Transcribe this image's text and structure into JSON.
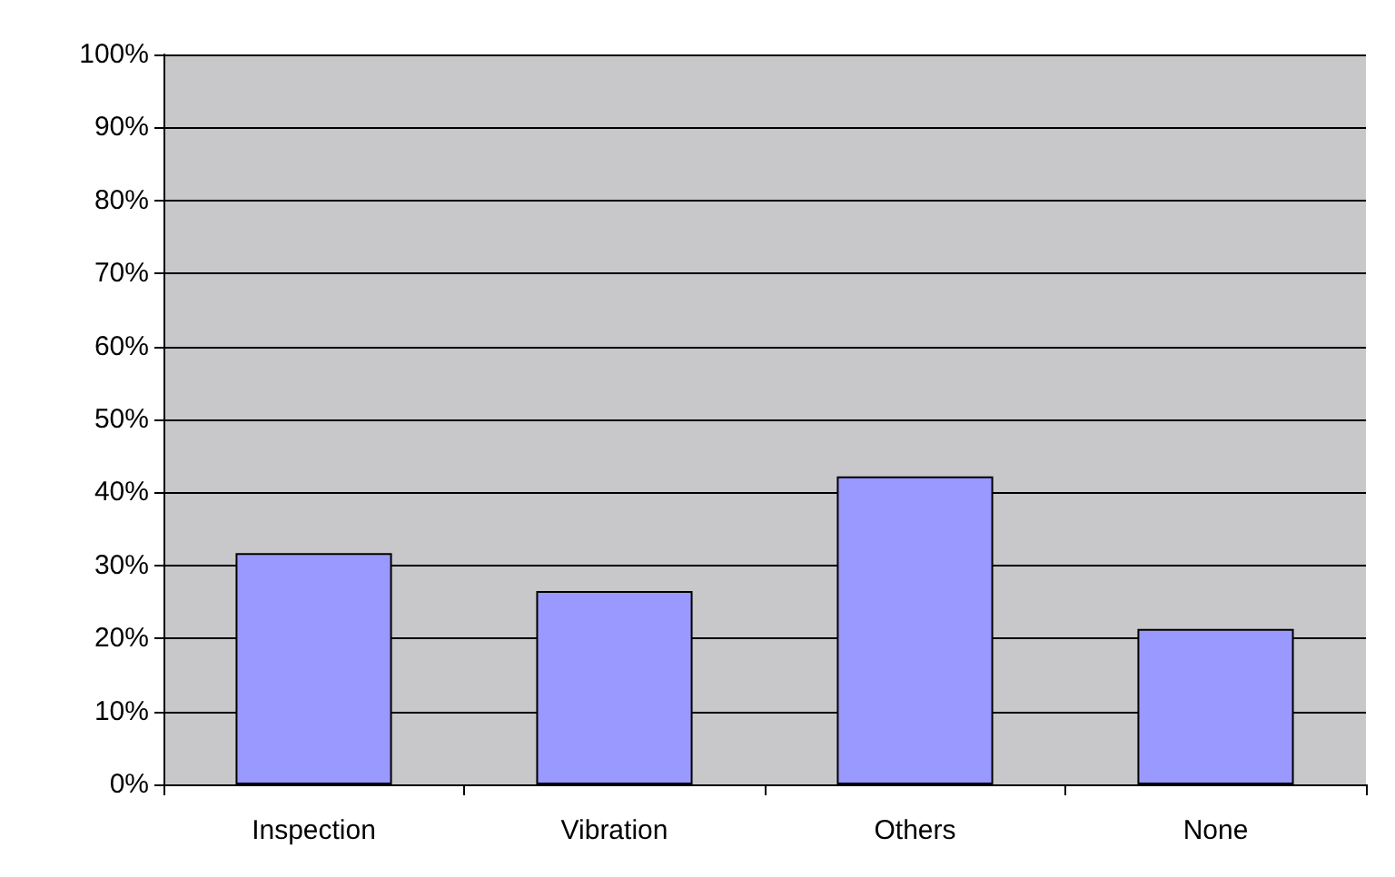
{
  "chart_data": {
    "type": "bar",
    "categories": [
      "Inspection",
      "Vibration",
      "Others",
      "None"
    ],
    "values": [
      31.7,
      26.5,
      42.2,
      21.3
    ],
    "color": "#9999ff",
    "ylim": [
      0,
      100
    ],
    "yticks": [
      {
        "value": 0,
        "label": "0%"
      },
      {
        "value": 10,
        "label": "10%"
      },
      {
        "value": 20,
        "label": "20%"
      },
      {
        "value": 30,
        "label": "30%"
      },
      {
        "value": 40,
        "label": "40%"
      },
      {
        "value": 50,
        "label": "50%"
      },
      {
        "value": 60,
        "label": "60%"
      },
      {
        "value": 70,
        "label": "70%"
      },
      {
        "value": 80,
        "label": "80%"
      },
      {
        "value": 90,
        "label": "90%"
      },
      {
        "value": 100,
        "label": "100%"
      }
    ],
    "grid": "y"
  }
}
